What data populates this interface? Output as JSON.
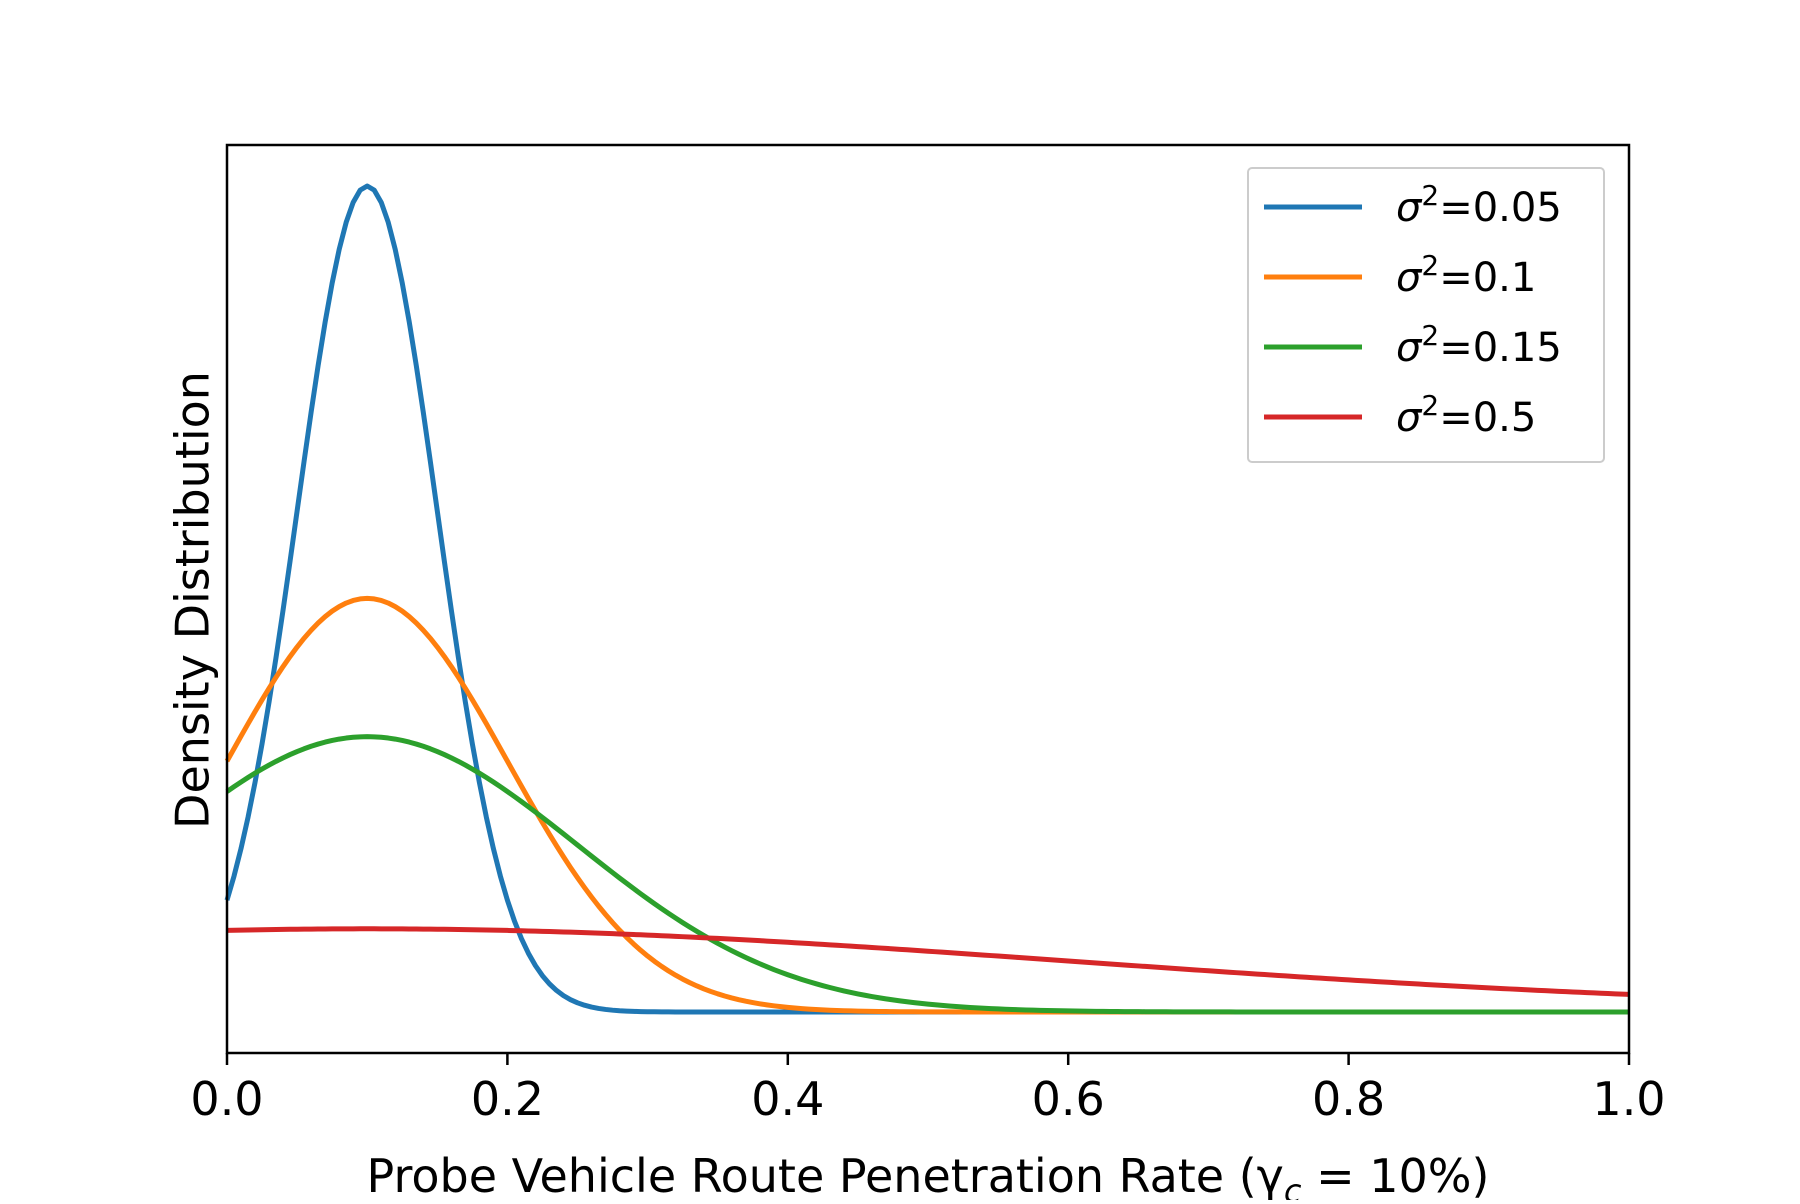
{
  "chart_data": {
    "type": "line",
    "title": "",
    "xlabel": "Probe Vehicle Route Penetration Rate (γ",
    "xlabel_sub": "c",
    "xlabel_tail": " = 10%)",
    "ylabel": "Density Distribution",
    "xlim": [
      0,
      1
    ],
    "ylim": [
      -0.35,
      7.4
    ],
    "xticks": [
      0.0,
      0.2,
      0.4,
      0.6,
      0.8,
      1.0
    ],
    "xtick_labels": [
      "0.0",
      "0.2",
      "0.4",
      "0.6",
      "0.8",
      "1.0"
    ],
    "show_yticks": false,
    "grid": false,
    "legend_position": "top-right",
    "x_range": [
      0,
      1
    ],
    "x_samples": 201,
    "series": [
      {
        "name_prefix": "σ",
        "name_sup": "2",
        "name_suffix": "=0.05",
        "color": "#1f77b4",
        "mean": 0.1,
        "sigma2": 0.05,
        "peak": 7.05,
        "end_value": 0.0
      },
      {
        "name_prefix": "σ",
        "name_sup": "2",
        "name_suffix": "=0.1",
        "color": "#ff7f0e",
        "mean": 0.1,
        "sigma2": 0.1,
        "peak": 3.53,
        "end_value": 0.0
      },
      {
        "name_prefix": "σ",
        "name_sup": "2",
        "name_suffix": "=0.15",
        "color": "#2ca02c",
        "mean": 0.1,
        "sigma2": 0.15,
        "peak": 2.35,
        "end_value": 0.0
      },
      {
        "name_prefix": "σ",
        "name_sup": "2",
        "name_suffix": "=0.5",
        "color": "#d62728",
        "mean": 0.1,
        "sigma2": 0.5,
        "peak": 0.71,
        "end_value": 0.15
      }
    ]
  }
}
